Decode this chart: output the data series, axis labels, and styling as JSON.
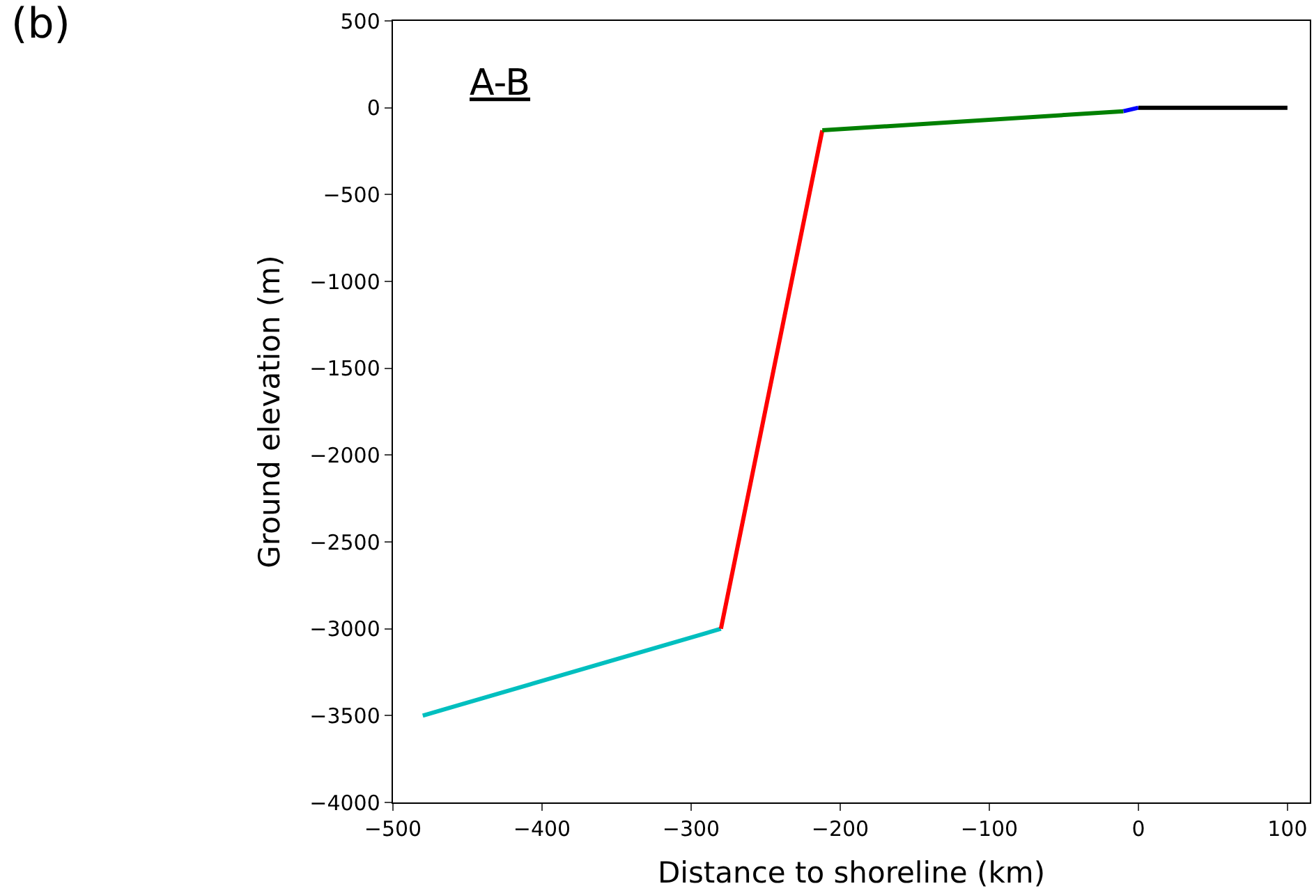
{
  "chart_data": {
    "type": "line",
    "xlabel": "Distance to shoreline (km)",
    "ylabel": "Ground elevation (m)",
    "annotations": [
      "(b)",
      "A-B"
    ],
    "series": [
      {
        "color": "#00bfbf",
        "x": [
          -480,
          -280
        ],
        "values": [
          -3500,
          -3000
        ]
      },
      {
        "color": "#ff0000",
        "x": [
          -280,
          -212
        ],
        "values": [
          -3000,
          -130
        ]
      },
      {
        "color": "#008000",
        "x": [
          -212,
          -10
        ],
        "values": [
          -130,
          -20
        ]
      },
      {
        "color": "#0000ff",
        "x": [
          -10,
          0
        ],
        "values": [
          -20,
          0
        ]
      },
      {
        "color": "#000000",
        "x": [
          0,
          100
        ],
        "values": [
          0,
          0
        ]
      }
    ],
    "xlim": [
      -500,
      115
    ],
    "ylim": [
      -4000,
      500
    ],
    "xticks": [
      -500,
      -400,
      -300,
      -200,
      -100,
      0,
      100
    ],
    "yticks": [
      -4000,
      -3500,
      -3000,
      -2500,
      -2000,
      -1500,
      -1000,
      -500,
      0,
      500
    ],
    "marker": "none",
    "line_style": "solid"
  }
}
